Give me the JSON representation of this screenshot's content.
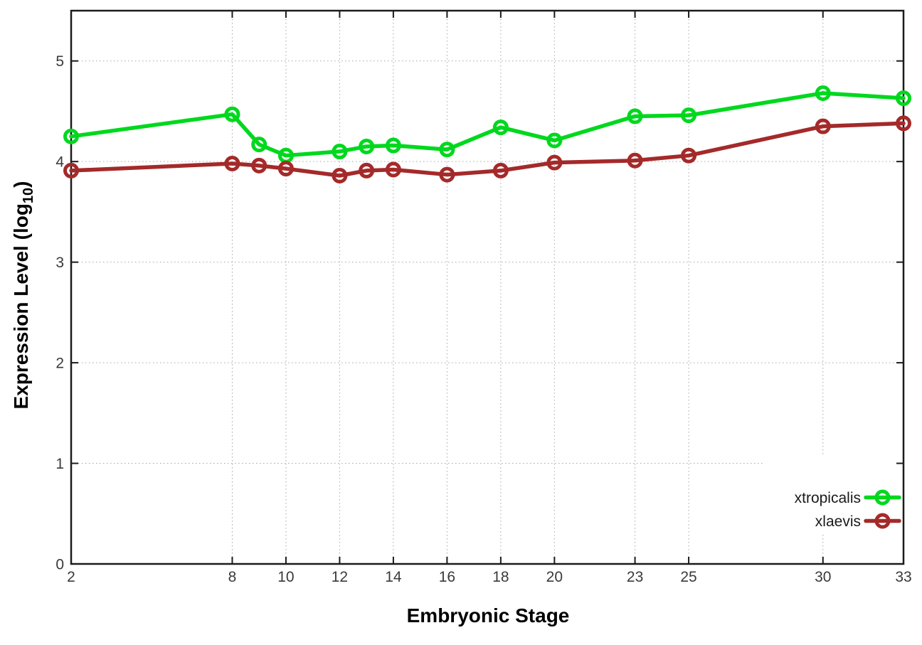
{
  "figure": {
    "xlabel": "Embryonic Stage",
    "ylabel_prefix": "Expression Level (log",
    "ylabel_sub": "10",
    "ylabel_suffix": ")"
  },
  "chart_data": {
    "type": "line",
    "title": "",
    "xlabel": "Embryonic Stage",
    "ylabel": "Expression Level (log10)",
    "x": [
      2,
      8,
      9,
      10,
      12,
      13,
      14,
      16,
      18,
      20,
      23,
      25,
      30,
      33
    ],
    "series": [
      {
        "name": "xtropicalis",
        "color": "#00d81e",
        "marker": "open-circle",
        "values": [
          4.25,
          4.47,
          4.17,
          4.06,
          4.1,
          4.15,
          4.16,
          4.12,
          4.34,
          4.21,
          4.45,
          4.46,
          4.68,
          4.63
        ]
      },
      {
        "name": "xlaevis",
        "color": "#a42a2a",
        "marker": "open-circle",
        "values": [
          3.91,
          3.98,
          3.96,
          3.93,
          3.86,
          3.91,
          3.92,
          3.87,
          3.91,
          3.99,
          4.01,
          4.06,
          4.35,
          4.38
        ]
      }
    ],
    "xticks": [
      2,
      8,
      10,
      12,
      14,
      16,
      18,
      20,
      23,
      25,
      30,
      33
    ],
    "yticks": [
      0,
      1,
      2,
      3,
      4,
      5
    ],
    "xlim": [
      2,
      33
    ],
    "ylim": [
      0,
      5.5
    ],
    "grid": true,
    "legend_position": "inside-bottom-right"
  },
  "style": {
    "background": "#ffffff",
    "grid_color": "#a6a6a6",
    "axis_color": "#1b1b1b",
    "tick_label_color": "#3a3a3a",
    "series_green": "#00d81e",
    "series_red": "#a42a2a"
  }
}
